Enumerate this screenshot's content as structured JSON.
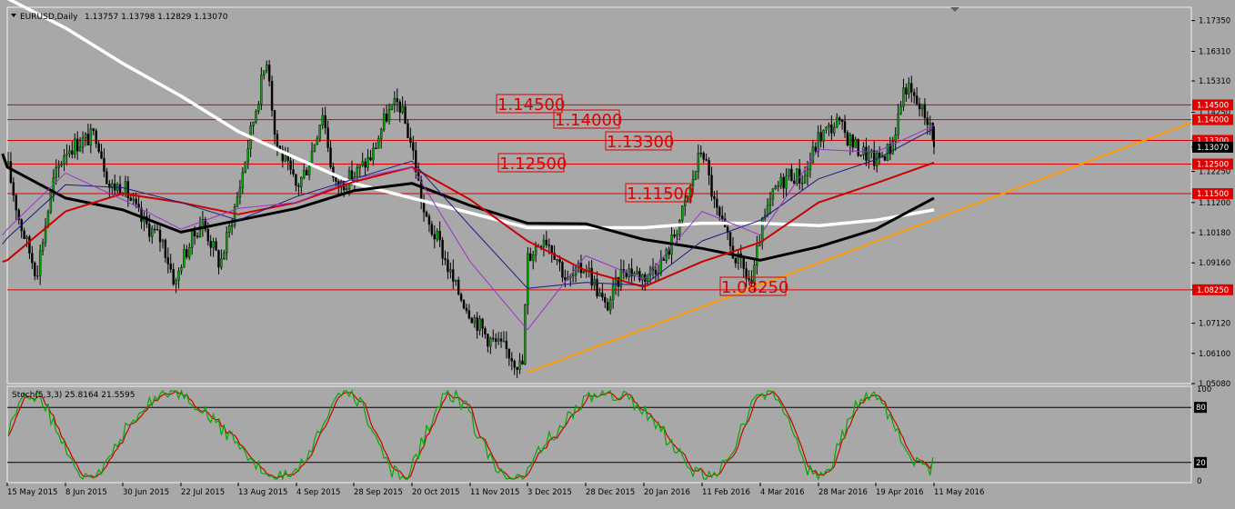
{
  "header": {
    "symbol_text": "EURUSD,Daily",
    "ohlc_text": "1.13757 1.13798 1.12829 1.13070"
  },
  "indicator_header": {
    "title_text": "Stoch(5,3,3) 25.8164 21.5595"
  },
  "chart_data": [
    {
      "type": "candlestick",
      "symbol": "EURUSD",
      "timeframe": "Daily",
      "last_bar": {
        "open": 1.13757,
        "high": 1.13798,
        "low": 1.12829,
        "close": 1.1307
      },
      "price_axis_ticks": [
        "1.17350",
        "1.16310",
        "1.15310",
        "1.14250",
        "1.13300",
        "1.13070",
        "1.12250",
        "1.11200",
        "1.10180",
        "1.09160",
        "1.08250",
        "1.07120",
        "1.06100",
        "1.05080"
      ],
      "price_range": [
        1.0508,
        1.178
      ],
      "time_axis_ticks": [
        "15 May 2015",
        "8 Jun 2015",
        "30 Jun 2015",
        "22 Jul 2015",
        "13 Aug 2015",
        "4 Sep 2015",
        "28 Sep 2015",
        "20 Oct 2015",
        "11 Nov 2015",
        "3 Dec 2015",
        "28 Dec 2015",
        "20 Jan 2016",
        "11 Feb 2016",
        "4 Mar 2016",
        "28 Mar 2016",
        "19 Apr 2016",
        "11 May 2016"
      ],
      "horizontal_levels": [
        {
          "price": 1.145,
          "label": "1.14500",
          "axis_tag": "1.14500"
        },
        {
          "price": 1.14,
          "label": "1.14000",
          "axis_tag": "1.14000"
        },
        {
          "price": 1.133,
          "label": "1.13300",
          "axis_tag": "1.13300"
        },
        {
          "price": 1.125,
          "label": "1.12500",
          "axis_tag": "1.12500"
        },
        {
          "price": 1.115,
          "label": "1.11500",
          "axis_tag": "1.11500"
        },
        {
          "price": 1.0825,
          "label": "1.08250",
          "axis_tag": "1.08250"
        }
      ],
      "current_price_tag": "1.13070",
      "trendline": {
        "start": {
          "date": "3 Dec 2015",
          "price": 1.0545
        },
        "end": {
          "date": "after 11 May 2016",
          "price": 1.139
        },
        "color": "#ff9900"
      },
      "moving_averages": [
        {
          "color": "#ffffff",
          "points": [
            [
              "13 May 2015",
              1.186
            ],
            [
              "15 May 2015",
              1.181
            ],
            [
              "8 Jun 2015",
              1.171
            ],
            [
              "30 Jun 2015",
              1.159
            ],
            [
              "22 Jul 2015",
              1.148
            ],
            [
              "13 Aug 2015",
              1.136
            ],
            [
              "4 Sep 2015",
              1.127
            ],
            [
              "28 Sep 2015",
              1.1185
            ],
            [
              "20 Oct 2015",
              1.1135
            ],
            [
              "11 Nov 2015",
              1.1085
            ],
            [
              "3 Dec 2015",
              1.1035
            ],
            [
              "28 Dec 2015",
              1.1035
            ],
            [
              "20 Jan 2016",
              1.1035
            ],
            [
              "11 Feb 2016",
              1.105
            ],
            [
              "4 Mar 2016",
              1.105
            ],
            [
              "28 Mar 2016",
              1.1042
            ],
            [
              "19 Apr 2016",
              1.106
            ],
            [
              "11 May 2016",
              1.1095
            ]
          ]
        },
        {
          "color": "#000000",
          "points": [
            [
              "13 May 2015",
              1.1285
            ],
            [
              "15 May 2015",
              1.124
            ],
            [
              "8 Jun 2015",
              1.1135
            ],
            [
              "30 Jun 2015",
              1.1095
            ],
            [
              "22 Jul 2015",
              1.102
            ],
            [
              "13 Aug 2015",
              1.106
            ],
            [
              "4 Sep 2015",
              1.11
            ],
            [
              "28 Sep 2015",
              1.116
            ],
            [
              "20 Oct 2015",
              1.1185
            ],
            [
              "11 Nov 2015",
              1.111
            ],
            [
              "3 Dec 2015",
              1.105
            ],
            [
              "28 Dec 2015",
              1.1048
            ],
            [
              "20 Jan 2016",
              1.0995
            ],
            [
              "11 Feb 2016",
              1.0965
            ],
            [
              "4 Mar 2016",
              1.0925
            ],
            [
              "28 Mar 2016",
              1.097
            ],
            [
              "19 Apr 2016",
              1.103
            ],
            [
              "11 May 2016",
              1.1135
            ]
          ]
        },
        {
          "color": "#cc0000",
          "points": [
            [
              "13 May 2015",
              1.092
            ],
            [
              "15 May 2015",
              1.0925
            ],
            [
              "8 Jun 2015",
              1.109
            ],
            [
              "30 Jun 2015",
              1.115
            ],
            [
              "22 Jul 2015",
              1.112
            ],
            [
              "13 Aug 2015",
              1.108
            ],
            [
              "4 Sep 2015",
              1.112
            ],
            [
              "28 Sep 2015",
              1.119
            ],
            [
              "20 Oct 2015",
              1.124
            ],
            [
              "11 Nov 2015",
              1.113
            ],
            [
              "3 Dec 2015",
              1.099
            ],
            [
              "28 Dec 2015",
              1.089
            ],
            [
              "20 Jan 2016",
              1.0835
            ],
            [
              "11 Feb 2016",
              1.092
            ],
            [
              "4 Mar 2016",
              1.0985
            ],
            [
              "28 Mar 2016",
              1.112
            ],
            [
              "19 Apr 2016",
              1.1185
            ],
            [
              "11 May 2016",
              1.1255
            ]
          ]
        },
        {
          "color": "#1a1a80",
          "points": [
            [
              "13 May 2015",
              1.098
            ],
            [
              "15 May 2015",
              1.1
            ],
            [
              "8 Jun 2015",
              1.118
            ],
            [
              "30 Jun 2015",
              1.117
            ],
            [
              "22 Jul 2015",
              1.112
            ],
            [
              "13 Aug 2015",
              1.106
            ],
            [
              "4 Sep 2015",
              1.114
            ],
            [
              "28 Sep 2015",
              1.12
            ],
            [
              "20 Oct 2015",
              1.126
            ],
            [
              "11 Nov 2015",
              1.104
            ],
            [
              "3 Dec 2015",
              1.083
            ],
            [
              "28 Dec 2015",
              1.085
            ],
            [
              "20 Jan 2016",
              1.084
            ],
            [
              "11 Feb 2016",
              1.099
            ],
            [
              "4 Mar 2016",
              1.106
            ],
            [
              "28 Mar 2016",
              1.12
            ],
            [
              "19 Apr 2016",
              1.1265
            ],
            [
              "11 May 2016",
              1.137
            ]
          ]
        },
        {
          "color": "#9933cc",
          "points": [
            [
              "13 May 2015",
              1.101
            ],
            [
              "15 May 2015",
              1.103
            ],
            [
              "8 Jun 2015",
              1.122
            ],
            [
              "30 Jun 2015",
              1.113
            ],
            [
              "22 Jul 2015",
              1.103
            ],
            [
              "13 Aug 2015",
              1.11
            ],
            [
              "4 Sep 2015",
              1.112
            ],
            [
              "28 Sep 2015",
              1.12
            ],
            [
              "20 Oct 2015",
              1.124
            ],
            [
              "11 Nov 2015",
              1.092
            ],
            [
              "3 Dec 2015",
              1.069
            ],
            [
              "28 Dec 2015",
              1.094
            ],
            [
              "20 Jan 2016",
              1.086
            ],
            [
              "11 Feb 2016",
              1.109
            ],
            [
              "4 Mar 2016",
              1.101
            ],
            [
              "28 Mar 2016",
              1.13
            ],
            [
              "19 Apr 2016",
              1.129
            ],
            [
              "11 May 2016",
              1.138
            ]
          ]
        }
      ],
      "price_path": [
        [
          "13 May 2015",
          1.143
        ],
        [
          "15 May 2015",
          1.125
        ],
        [
          "20 May 2015",
          1.106
        ],
        [
          "27 May 2015",
          1.088
        ],
        [
          "3 Jun 2015",
          1.119
        ],
        [
          "8 Jun 2015",
          1.13
        ],
        [
          "15 Jun 2015",
          1.133
        ],
        [
          "20 Jun 2015",
          1.135
        ],
        [
          "25 Jun 2015",
          1.117
        ],
        [
          "30 Jun 2015",
          1.118
        ],
        [
          "7 Jul 2015",
          1.106
        ],
        [
          "15 Jul 2015",
          1.099
        ],
        [
          "20 Jul 2015",
          1.084
        ],
        [
          "22 Jul 2015",
          1.092
        ],
        [
          "30 Jul 2015",
          1.106
        ],
        [
          "6 Aug 2015",
          1.091
        ],
        [
          "13 Aug 2015",
          1.115
        ],
        [
          "18 Aug 2015",
          1.137
        ],
        [
          "24 Aug 2015",
          1.162
        ],
        [
          "27 Aug 2015",
          1.133
        ],
        [
          "4 Sep 2015",
          1.117
        ],
        [
          "9 Sep 2015",
          1.125
        ],
        [
          "15 Sep 2015",
          1.143
        ],
        [
          "20 Sep 2015",
          1.117
        ],
        [
          "28 Sep 2015",
          1.121
        ],
        [
          "5 Oct 2015",
          1.128
        ],
        [
          "10 Oct 2015",
          1.141
        ],
        [
          "15 Oct 2015",
          1.146
        ],
        [
          "20 Oct 2015",
          1.131
        ],
        [
          "25 Oct 2015",
          1.106
        ],
        [
          "30 Oct 2015",
          1.099
        ],
        [
          "5 Nov 2015",
          1.084
        ],
        [
          "11 Nov 2015",
          1.075
        ],
        [
          "18 Nov 2015",
          1.066
        ],
        [
          "25 Nov 2015",
          1.062
        ],
        [
          "1 Dec 2015",
          1.056
        ],
        [
          "3 Dec 2015",
          1.093
        ],
        [
          "10 Dec 2015",
          1.101
        ],
        [
          "15 Dec 2015",
          1.095
        ],
        [
          "20 Dec 2015",
          1.085
        ],
        [
          "28 Dec 2015",
          1.091
        ],
        [
          "5 Jan 2016",
          1.076
        ],
        [
          "12 Jan 2016",
          1.09
        ],
        [
          "20 Jan 2016",
          1.087
        ],
        [
          "28 Jan 2016",
          1.093
        ],
        [
          "5 Feb 2016",
          1.112
        ],
        [
          "11 Feb 2016",
          1.131
        ],
        [
          "16 Feb 2016",
          1.11
        ],
        [
          "22 Feb 2016",
          1.096
        ],
        [
          "1 Mar 2016",
          1.084
        ],
        [
          "4 Mar 2016",
          1.102
        ],
        [
          "10 Mar 2016",
          1.116
        ],
        [
          "16 Mar 2016",
          1.122
        ],
        [
          "22 Mar 2016",
          1.12
        ],
        [
          "28 Mar 2016",
          1.134
        ],
        [
          "4 Apr 2016",
          1.139
        ],
        [
          "11 Apr 2016",
          1.131
        ],
        [
          "19 Apr 2016",
          1.126
        ],
        [
          "25 Apr 2016",
          1.131
        ],
        [
          "30 Apr 2016",
          1.152
        ],
        [
          "4 May 2016",
          1.146
        ],
        [
          "9 May 2016",
          1.14
        ],
        [
          "11 May 2016",
          1.1307
        ]
      ]
    },
    {
      "type": "oscillator",
      "name": "Stoch(5,3,3)",
      "values": {
        "main": 25.8164,
        "signal": 21.5595
      },
      "range": [
        0,
        100
      ],
      "axis_ticks": [
        "100",
        "80",
        "20",
        "0"
      ],
      "levels": [
        80,
        20
      ],
      "main_color": "#00aa00",
      "signal_color": "#cc0000"
    }
  ]
}
